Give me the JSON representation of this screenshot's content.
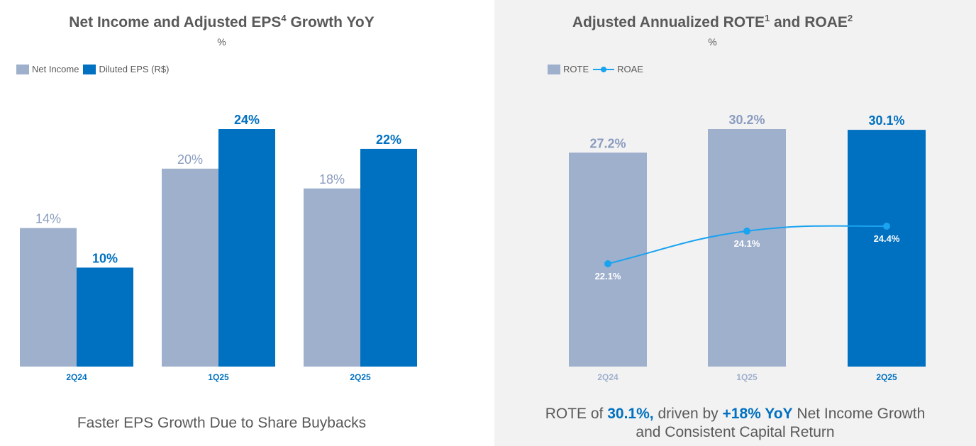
{
  "colors": {
    "light_bar": "#9fb0cd",
    "dark_bar": "#0070c0",
    "roae_line": "#1aa3f0",
    "text": "#595959",
    "right_bg": "#f2f2f2"
  },
  "left": {
    "title": "Net Income and Adjusted EPS",
    "title_sup": "4",
    "title_tail": " Growth YoY",
    "unit": "%",
    "legend": [
      "Net Income",
      "Diluted EPS (R$)"
    ],
    "footer": "Faster EPS Growth Due to Share Buybacks"
  },
  "right": {
    "title": "Adjusted Annualized ROTE",
    "title_sup1": "1",
    "title_mid": " and ROAE",
    "title_sup2": "2",
    "unit": "%",
    "legend": [
      "ROTE",
      "ROAE"
    ],
    "footer": {
      "p1": "ROTE of ",
      "p2": "30.1%,",
      "p3": " driven by ",
      "p4": "+18% YoY",
      "p5": " Net Income Growth",
      "line2": "and Consistent Capital Return"
    }
  },
  "chart_data": [
    {
      "type": "bar",
      "categories": [
        "2Q24",
        "1Q25",
        "2Q25"
      ],
      "series": [
        {
          "name": "Net Income",
          "values": [
            14,
            20,
            18
          ],
          "labels": [
            "14%",
            "20%",
            "18%"
          ]
        },
        {
          "name": "Diluted EPS (R$)",
          "values": [
            10,
            24,
            22
          ],
          "labels": [
            "10%",
            "24%",
            "22%"
          ]
        }
      ],
      "ylim": [
        0,
        24
      ]
    },
    {
      "type": "bar",
      "categories": [
        "2Q24",
        "1Q25",
        "2Q25"
      ],
      "series": [
        {
          "name": "ROTE",
          "values": [
            27.2,
            30.2,
            30.1
          ],
          "labels": [
            "27.2%",
            "30.2%",
            "30.1%"
          ]
        },
        {
          "name": "ROAE",
          "type": "line",
          "values": [
            22.1,
            24.1,
            24.4
          ],
          "labels": [
            "22.1%",
            "24.1%",
            "24.4%"
          ]
        }
      ],
      "ylim": [
        0,
        30.2
      ]
    }
  ]
}
